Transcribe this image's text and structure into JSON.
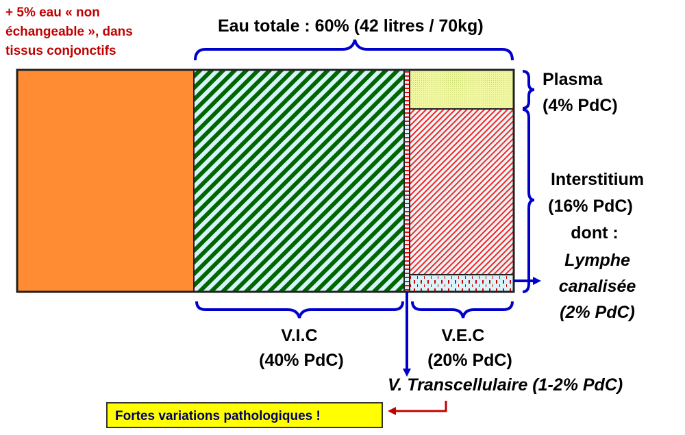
{
  "note_non_exchangeable": [
    "+ 5% eau « non",
    "échangeable », dans",
    "tissus conjonctifs"
  ],
  "title": "Eau totale : 60% (42 litres / 70kg)",
  "plasma": [
    "Plasma",
    "(4% PdC)"
  ],
  "interstitium": [
    "Interstitium",
    "(16% PdC)",
    "dont :"
  ],
  "lymph": [
    "Lymphe",
    "canalisée",
    "(2% PdC)"
  ],
  "vic": [
    "V.I.C",
    "(40% PdC)"
  ],
  "vec": [
    "V.E.C",
    "(20% PdC)"
  ],
  "transcellular": "V. Transcellulaire (1-2% PdC)",
  "callout": "Fortes variations pathologiques !",
  "colors": {
    "non_exchangeable": "#ff8c33",
    "vic": "#006600",
    "plasma": "#f0f7a0",
    "interstitium": "#ff0000",
    "lymph_bg": "#d8f4fa",
    "brace": "#0000cc",
    "note": "#c00000",
    "callout_bg": "#ffff00"
  }
}
